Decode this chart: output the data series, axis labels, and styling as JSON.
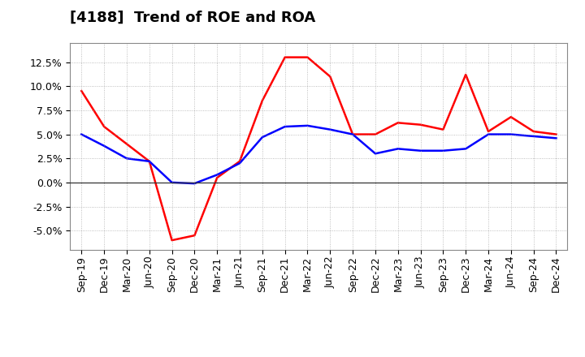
{
  "title": "[4188]  Trend of ROE and ROA",
  "x_labels": [
    "Sep-19",
    "Dec-19",
    "Mar-20",
    "Jun-20",
    "Sep-20",
    "Dec-20",
    "Mar-21",
    "Jun-21",
    "Sep-21",
    "Dec-21",
    "Mar-22",
    "Jun-22",
    "Sep-22",
    "Dec-22",
    "Mar-23",
    "Jun-23",
    "Sep-23",
    "Dec-23",
    "Mar-24",
    "Jun-24",
    "Sep-24",
    "Dec-24"
  ],
  "roe": [
    9.5,
    5.8,
    4.0,
    2.2,
    -6.0,
    -5.5,
    0.5,
    2.2,
    8.5,
    13.0,
    13.0,
    11.0,
    5.0,
    5.0,
    6.2,
    6.0,
    5.5,
    11.2,
    5.3,
    6.8,
    5.3,
    5.0
  ],
  "roa": [
    5.0,
    3.8,
    2.5,
    2.2,
    0.0,
    -0.1,
    0.8,
    2.0,
    4.7,
    5.8,
    5.9,
    5.5,
    5.0,
    3.0,
    3.5,
    3.3,
    3.3,
    3.5,
    5.0,
    5.0,
    4.8,
    4.6
  ],
  "roe_color": "#ff0000",
  "roa_color": "#0000ff",
  "background_color": "#ffffff",
  "grid_color": "#999999",
  "ylim": [
    -7.0,
    14.5
  ],
  "yticks": [
    -5.0,
    -2.5,
    0.0,
    2.5,
    5.0,
    7.5,
    10.0,
    12.5
  ],
  "line_width": 1.8,
  "title_fontsize": 13,
  "tick_fontsize": 9,
  "legend_fontsize": 11
}
